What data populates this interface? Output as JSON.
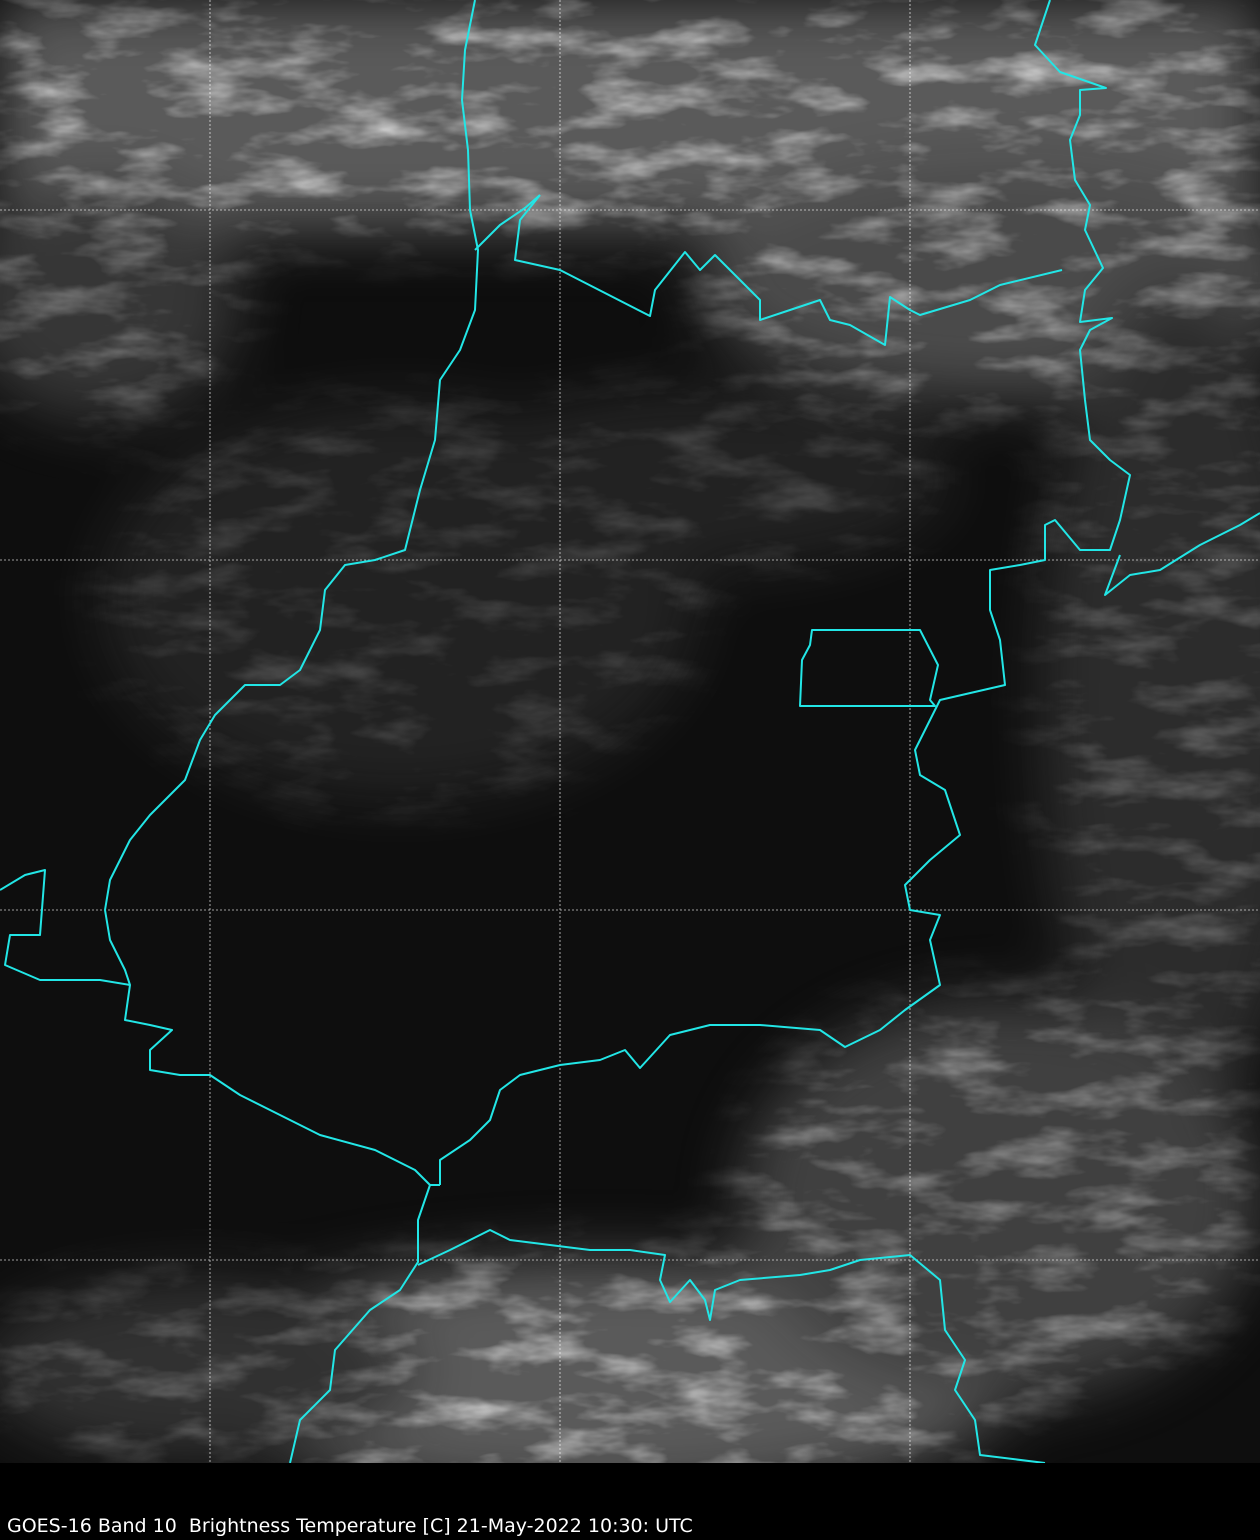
{
  "caption": "GOES-16 Band 10  Brightness Temperature [C] 21-May-2022 10:30: UTC",
  "colors": {
    "border": "#22e6e6",
    "grid": "#ffffff",
    "background": "#000000"
  },
  "map": {
    "imagery": "grayscale infrared satellite imagery",
    "overlay": "state and country borders",
    "gridlines": true
  }
}
